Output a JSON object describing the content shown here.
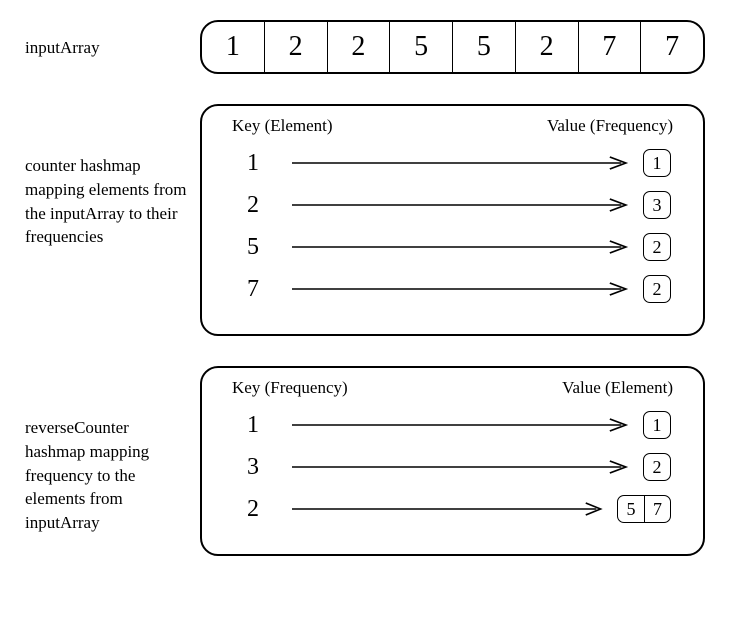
{
  "inputArray": {
    "label": "inputArray",
    "cells": [
      "1",
      "2",
      "2",
      "5",
      "5",
      "2",
      "7",
      "7"
    ]
  },
  "counter": {
    "desc": "counter hashmap mapping elements from the inputArray to their frequencies",
    "keyHeader": "Key (Element)",
    "valHeader": "Value (Frequency)",
    "rows": [
      {
        "key": "1",
        "vals": [
          "1"
        ]
      },
      {
        "key": "2",
        "vals": [
          "3"
        ]
      },
      {
        "key": "5",
        "vals": [
          "2"
        ]
      },
      {
        "key": "7",
        "vals": [
          "2"
        ]
      }
    ]
  },
  "reverse": {
    "desc": "reverseCounter hashmap mapping frequency to the elements from inputArray",
    "keyHeader": "Key (Frequency)",
    "valHeader": "Value (Element)",
    "rows": [
      {
        "key": "1",
        "vals": [
          "1"
        ]
      },
      {
        "key": "3",
        "vals": [
          "2"
        ]
      },
      {
        "key": "2",
        "vals": [
          "5",
          "7"
        ]
      }
    ]
  },
  "style": {
    "stroke": "#000000",
    "strokeWidth": 1.6,
    "panelRadius": 18,
    "cellFontSize": 28,
    "labelFontSize": 17
  }
}
